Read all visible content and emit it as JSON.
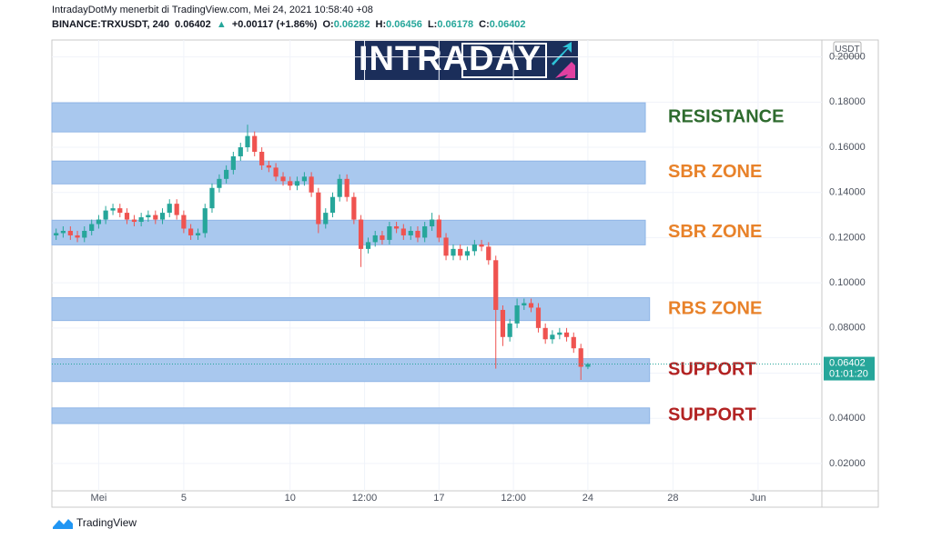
{
  "chart_data": {
    "type": "candlestick",
    "title": "IntradayDotMy menerbit di TradingView.com, Mei 24, 2021 10:58:40 +08",
    "symbol": "BINANCE:TRXUSDT, 240",
    "legend": {
      "price": "0.06402",
      "arrow": "▲",
      "change": "+0.00117 (+1.86%)",
      "o_label": "O:",
      "open": "0.06282",
      "h_label": "H:",
      "high": "0.06456",
      "l_label": "L:",
      "low": "0.06178",
      "c_label": "C:",
      "close": "0.06402"
    },
    "logo": "INTRADAY",
    "footer": "TradingView",
    "axis_unit": "USDT",
    "last_price": {
      "value": 0.06402,
      "label": "0.06402",
      "countdown": "01:01:20",
      "color": "#26a69a"
    },
    "up_color": "#26a69a",
    "down_color": "#ef5350",
    "xlim": [
      -2.2,
      34.0
    ],
    "ylim": [
      0.0079,
      0.2075
    ],
    "xticks": [
      {
        "value": 0,
        "label": "Mei"
      },
      {
        "value": 4,
        "label": "5"
      },
      {
        "value": 9,
        "label": "10"
      },
      {
        "value": 12.5,
        "label": "12:00"
      },
      {
        "value": 16,
        "label": "17"
      },
      {
        "value": 19.5,
        "label": "12:00"
      },
      {
        "value": 23,
        "label": "24"
      },
      {
        "value": 27,
        "label": "28"
      },
      {
        "value": 31,
        "label": "Jun"
      }
    ],
    "yticks": [
      {
        "value": 0.02,
        "label": "0.02000"
      },
      {
        "value": 0.04,
        "label": "0.04000"
      },
      {
        "value": 0.06,
        "label": "0.06000"
      },
      {
        "value": 0.08,
        "label": "0.08000"
      },
      {
        "value": 0.1,
        "label": "0.10000"
      },
      {
        "value": 0.12,
        "label": "0.12000"
      },
      {
        "value": 0.14,
        "label": "0.14000"
      },
      {
        "value": 0.16,
        "label": "0.16000"
      },
      {
        "value": 0.18,
        "label": "0.18000"
      },
      {
        "value": 0.2,
        "label": "0.20000"
      }
    ],
    "zones": [
      {
        "label": "RESISTANCE",
        "color": "#2e6b2e",
        "range": [
          0.1668,
          0.1797
        ],
        "x_end": 25.7
      },
      {
        "label": "SBR ZONE",
        "color": "#e8822a",
        "range": [
          0.1438,
          0.1539
        ],
        "x_end": 25.7
      },
      {
        "label": "SBR ZONE",
        "color": "#e8822a",
        "range": [
          0.1168,
          0.1277
        ],
        "x_end": 25.7
      },
      {
        "label": "RBS ZONE",
        "color": "#e8822a",
        "range": [
          0.0833,
          0.0934
        ],
        "x_end": 25.9
      },
      {
        "label": "SUPPORT",
        "color": "#b22222",
        "range": [
          0.0563,
          0.0664
        ],
        "x_end": 25.9
      },
      {
        "label": "SUPPORT",
        "color": "#b22222",
        "range": [
          0.0377,
          0.0446
        ],
        "x_end": 25.9
      }
    ],
    "x": [
      -2,
      -1.67,
      -1.33,
      -1,
      -0.67,
      -0.33,
      0,
      0.33,
      0.67,
      1,
      1.33,
      1.67,
      2,
      2.33,
      2.67,
      3,
      3.33,
      3.67,
      4,
      4.33,
      4.67,
      5,
      5.33,
      5.67,
      6,
      6.33,
      6.67,
      7,
      7.33,
      7.67,
      8,
      8.33,
      8.67,
      9,
      9.33,
      9.67,
      10,
      10.33,
      10.67,
      11,
      11.33,
      11.67,
      12,
      12.33,
      12.67,
      13,
      13.33,
      13.67,
      14,
      14.33,
      14.67,
      15,
      15.33,
      15.67,
      16,
      16.33,
      16.67,
      17,
      17.33,
      17.67,
      18,
      18.33,
      18.67,
      19,
      19.33,
      19.67,
      20,
      20.33,
      20.67,
      21,
      21.33,
      21.67,
      22,
      22.33,
      22.67,
      23
    ],
    "open": [
      0.121,
      0.122,
      0.123,
      0.121,
      0.12,
      0.123,
      0.126,
      0.128,
      0.132,
      0.133,
      0.131,
      0.128,
      0.127,
      0.129,
      0.13,
      0.128,
      0.131,
      0.135,
      0.13,
      0.124,
      0.121,
      0.122,
      0.133,
      0.142,
      0.146,
      0.15,
      0.156,
      0.16,
      0.165,
      0.158,
      0.152,
      0.151,
      0.147,
      0.145,
      0.143,
      0.145,
      0.147,
      0.14,
      0.126,
      0.131,
      0.138,
      0.146,
      0.138,
      0.128,
      0.115,
      0.118,
      0.121,
      0.119,
      0.125,
      0.124,
      0.121,
      0.123,
      0.12,
      0.125,
      0.128,
      0.12,
      0.112,
      0.115,
      0.112,
      0.114,
      0.117,
      0.116,
      0.11,
      0.088,
      0.076,
      0.082,
      0.09,
      0.091,
      0.089,
      0.08,
      0.075,
      0.077,
      0.078,
      0.076,
      0.071,
      0.06282
    ],
    "high": [
      0.124,
      0.125,
      0.125,
      0.123,
      0.125,
      0.128,
      0.13,
      0.134,
      0.135,
      0.135,
      0.133,
      0.13,
      0.131,
      0.132,
      0.132,
      0.133,
      0.137,
      0.137,
      0.132,
      0.126,
      0.124,
      0.135,
      0.144,
      0.148,
      0.152,
      0.158,
      0.162,
      0.17,
      0.167,
      0.16,
      0.154,
      0.153,
      0.149,
      0.147,
      0.147,
      0.149,
      0.149,
      0.142,
      0.133,
      0.14,
      0.148,
      0.148,
      0.14,
      0.13,
      0.12,
      0.123,
      0.123,
      0.127,
      0.127,
      0.126,
      0.125,
      0.125,
      0.127,
      0.131,
      0.13,
      0.122,
      0.117,
      0.117,
      0.116,
      0.119,
      0.119,
      0.118,
      0.112,
      0.09,
      0.084,
      0.093,
      0.093,
      0.093,
      0.091,
      0.082,
      0.079,
      0.08,
      0.08,
      0.078,
      0.073,
      0.06456
    ],
    "low": [
      0.119,
      0.12,
      0.119,
      0.118,
      0.118,
      0.121,
      0.124,
      0.126,
      0.13,
      0.129,
      0.126,
      0.125,
      0.125,
      0.127,
      0.126,
      0.126,
      0.129,
      0.128,
      0.122,
      0.119,
      0.119,
      0.12,
      0.131,
      0.14,
      0.144,
      0.148,
      0.154,
      0.158,
      0.156,
      0.15,
      0.149,
      0.145,
      0.143,
      0.141,
      0.141,
      0.143,
      0.138,
      0.122,
      0.124,
      0.129,
      0.136,
      0.136,
      0.126,
      0.107,
      0.113,
      0.116,
      0.117,
      0.117,
      0.122,
      0.119,
      0.119,
      0.118,
      0.118,
      0.123,
      0.118,
      0.11,
      0.11,
      0.11,
      0.11,
      0.112,
      0.114,
      0.108,
      0.062,
      0.072,
      0.074,
      0.08,
      0.088,
      0.087,
      0.078,
      0.073,
      0.073,
      0.075,
      0.074,
      0.069,
      0.057,
      0.06178
    ],
    "close": [
      0.122,
      0.123,
      0.121,
      0.12,
      0.123,
      0.126,
      0.128,
      0.132,
      0.133,
      0.131,
      0.128,
      0.127,
      0.129,
      0.13,
      0.128,
      0.131,
      0.135,
      0.13,
      0.124,
      0.121,
      0.122,
      0.133,
      0.142,
      0.146,
      0.15,
      0.156,
      0.16,
      0.165,
      0.158,
      0.152,
      0.151,
      0.147,
      0.145,
      0.143,
      0.145,
      0.147,
      0.14,
      0.126,
      0.131,
      0.138,
      0.146,
      0.138,
      0.128,
      0.115,
      0.118,
      0.121,
      0.119,
      0.125,
      0.124,
      0.121,
      0.123,
      0.12,
      0.125,
      0.128,
      0.12,
      0.112,
      0.115,
      0.112,
      0.114,
      0.117,
      0.116,
      0.11,
      0.088,
      0.076,
      0.082,
      0.09,
      0.091,
      0.089,
      0.08,
      0.075,
      0.077,
      0.078,
      0.076,
      0.071,
      0.06282,
      0.06402
    ]
  }
}
